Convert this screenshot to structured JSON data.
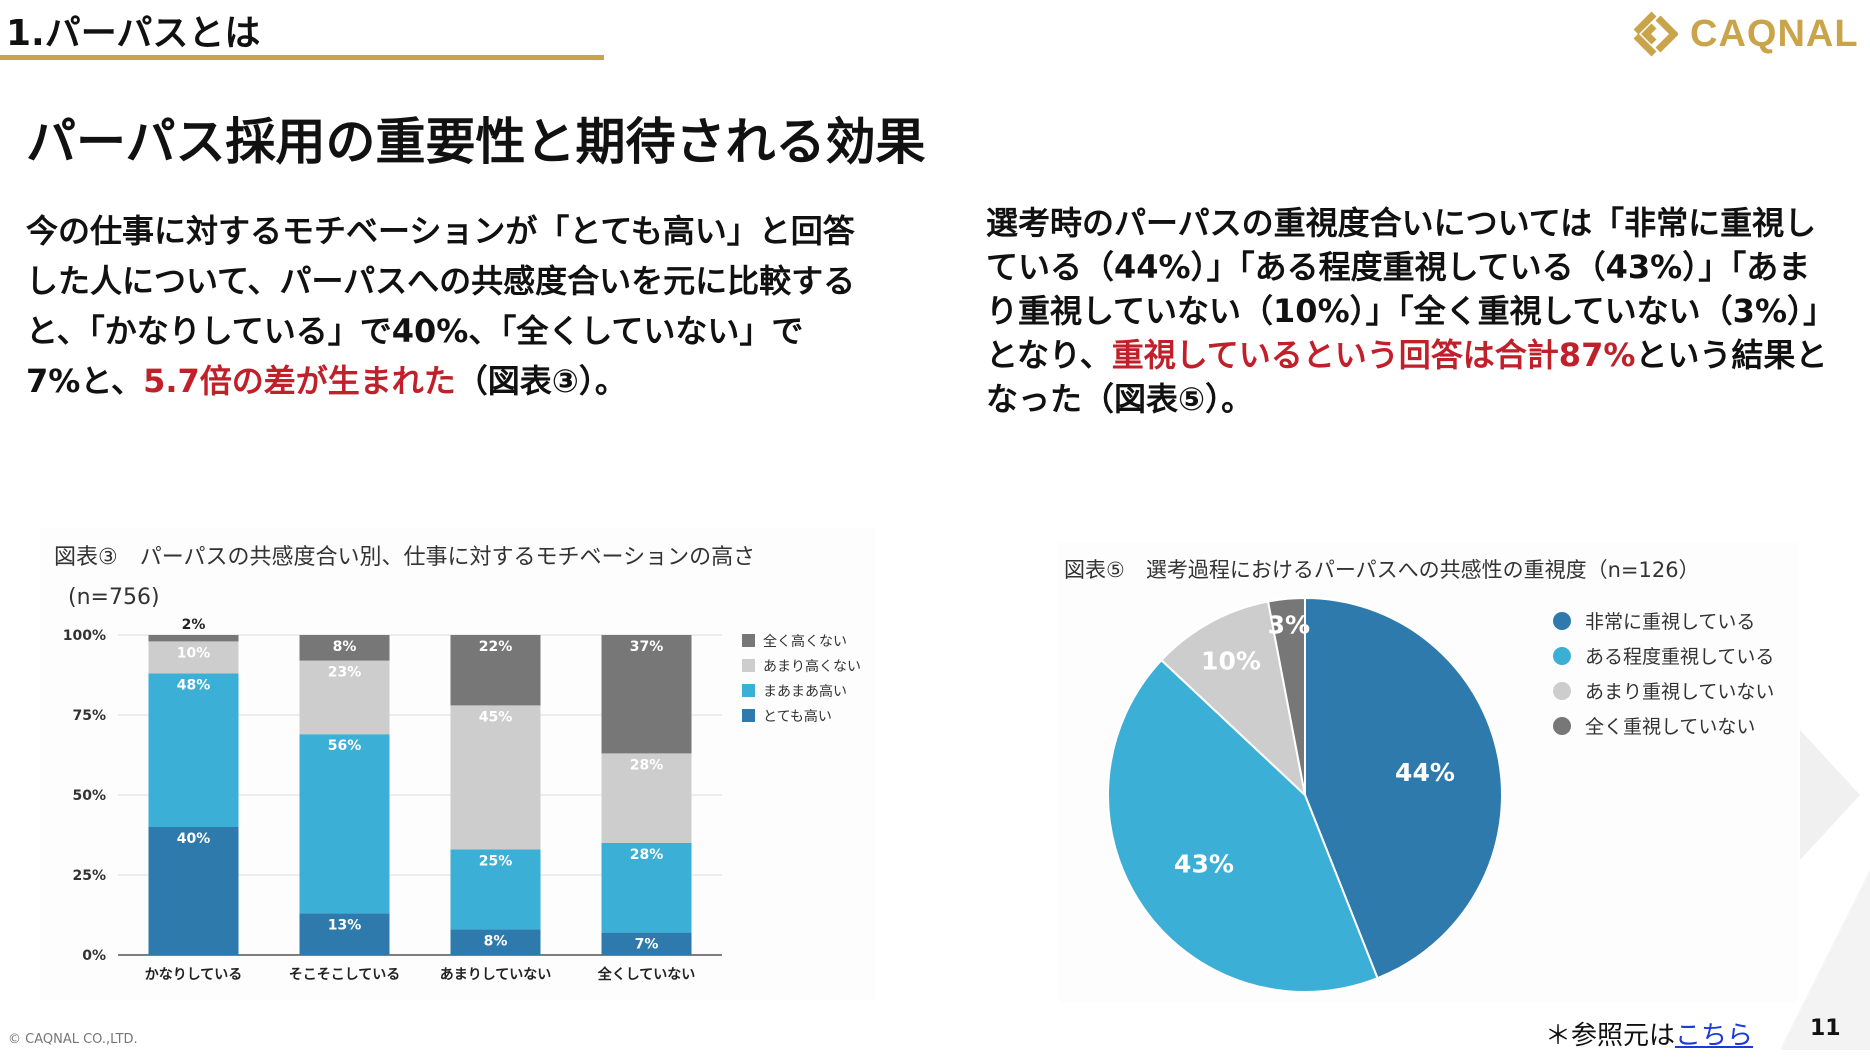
{
  "header": {
    "section_label": "1.パーパスとは",
    "logo_text": "CAQNAL"
  },
  "page_title": "パーパス採用の重要性と期待される効果",
  "left_paragraph": {
    "text1": "今の仕事に対するモチベーションが「とても高い」と回答した人について、パーパスへの共感度合いを元に比較すると、「かなりしている」で40%、「全くしていない」で7%と、",
    "highlight": "5.7倍の差が生まれた",
    "text2": "（図表③）。"
  },
  "right_paragraph": {
    "text1": "選考時のパーパスの重視度合いについては「非常に重視している（44%）」「ある程度重視している（43%）」「あまり重視していない（10%）」「全く重視していない（3%）」となり、",
    "highlight": "重視しているという回答は合計87%",
    "text2": "という結果となった（図表⑤）。"
  },
  "chart_data": [
    {
      "type": "bar",
      "stacked": true,
      "title": "図表③　パーパスの共感度合い別、仕事に対するモチベーションの高さ",
      "subtitle": "(n=756)",
      "categories": [
        "かなりしている",
        "そこそこしている",
        "あまりしていない",
        "全くしていない"
      ],
      "yticks": [
        "100%",
        "75%",
        "50%",
        "25%",
        "0%"
      ],
      "ylim": [
        0,
        100
      ],
      "grid": true,
      "legend_position": "right",
      "series": [
        {
          "name": "とても高い",
          "values": [
            40,
            13,
            8,
            7
          ],
          "color": "#2e7aad"
        },
        {
          "name": "まあまあ高い",
          "values": [
            48,
            56,
            25,
            28
          ],
          "color": "#3cafd6"
        },
        {
          "name": "あまり高くない",
          "values": [
            10,
            23,
            45,
            28
          ],
          "color": "#cdcdcd"
        },
        {
          "name": "全く高くない",
          "values": [
            2,
            8,
            22,
            37
          ],
          "color": "#777777"
        }
      ]
    },
    {
      "type": "pie",
      "title": "図表⑤　選考過程におけるパーパスへの共感性の重視度（n=126）",
      "legend_position": "right",
      "labels": [
        "非常に重視している",
        "ある程度重視している",
        "あまり重視していない",
        "全く重視していない"
      ],
      "values": [
        44,
        43,
        10,
        3
      ],
      "colors": [
        "#2e7aad",
        "#3cafd6",
        "#cdcdcd",
        "#777777"
      ]
    }
  ],
  "footer": {
    "copyright": "© CAQNAL CO.,LTD.",
    "ref_prefix": "＊参照元は",
    "ref_link": "こちら",
    "page_number": "11"
  }
}
